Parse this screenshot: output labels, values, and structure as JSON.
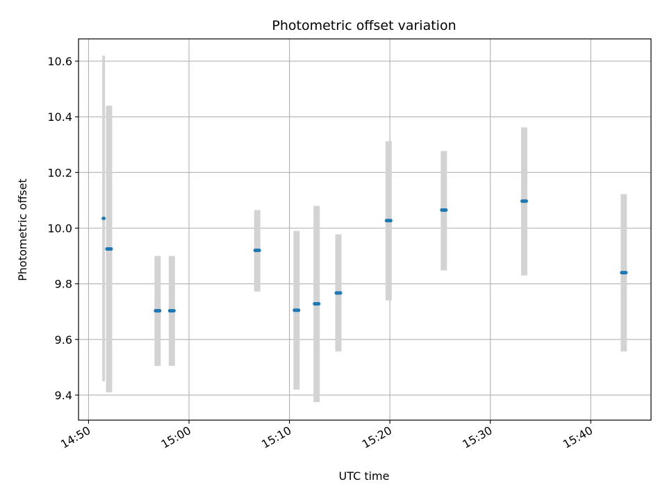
{
  "chart_data": {
    "type": "scatter",
    "title": "Photometric offset variation",
    "xlabel": "UTC time",
    "ylabel": "Photometric offset",
    "x_axis": {
      "kind": "time",
      "range": [
        "14:49:00",
        "15:46:00"
      ],
      "ticks": [
        "14:50",
        "15:00",
        "15:10",
        "15:20",
        "15:30",
        "15:40"
      ]
    },
    "y_axis": {
      "range": [
        9.31,
        10.68
      ],
      "ticks": [
        9.4,
        9.6,
        9.8,
        10.0,
        10.2,
        10.4,
        10.6
      ],
      "tick_labels": [
        "9.4",
        "9.6",
        "9.8",
        "10.0",
        "10.2",
        "10.4",
        "10.6"
      ]
    },
    "grid": true,
    "points": [
      {
        "x_start": "14:51:30",
        "x_end": "14:51:30",
        "y": 10.035,
        "y_low": 9.45,
        "y_high": 10.62
      },
      {
        "x_start": "14:51:50",
        "x_end": "14:52:15",
        "y": 9.925,
        "y_low": 9.41,
        "y_high": 10.44
      },
      {
        "x_start": "14:56:40",
        "x_end": "14:57:05",
        "y": 9.703,
        "y_low": 9.505,
        "y_high": 9.9
      },
      {
        "x_start": "14:58:05",
        "x_end": "14:58:30",
        "y": 9.703,
        "y_low": 9.505,
        "y_high": 9.9
      },
      {
        "x_start": "15:06:35",
        "x_end": "15:07:00",
        "y": 9.92,
        "y_low": 9.772,
        "y_high": 10.065
      },
      {
        "x_start": "15:10:30",
        "x_end": "15:10:55",
        "y": 9.705,
        "y_low": 9.42,
        "y_high": 9.99
      },
      {
        "x_start": "15:12:30",
        "x_end": "15:12:55",
        "y": 9.728,
        "y_low": 9.375,
        "y_high": 10.08
      },
      {
        "x_start": "15:14:40",
        "x_end": "15:15:05",
        "y": 9.767,
        "y_low": 9.557,
        "y_high": 9.978
      },
      {
        "x_start": "15:19:40",
        "x_end": "15:20:05",
        "y": 10.027,
        "y_low": 9.74,
        "y_high": 10.312
      },
      {
        "x_start": "15:25:10",
        "x_end": "15:25:35",
        "y": 10.065,
        "y_low": 9.848,
        "y_high": 10.277
      },
      {
        "x_start": "15:33:10",
        "x_end": "15:33:35",
        "y": 10.097,
        "y_low": 9.83,
        "y_high": 10.362
      },
      {
        "x_start": "15:43:05",
        "x_end": "15:43:30",
        "y": 9.84,
        "y_low": 9.557,
        "y_high": 10.122
      }
    ],
    "colors": {
      "marker": "#1f77b4",
      "errorbar": "#d3d3d3",
      "grid": "#b0b0b0",
      "axes": "#000000"
    }
  }
}
